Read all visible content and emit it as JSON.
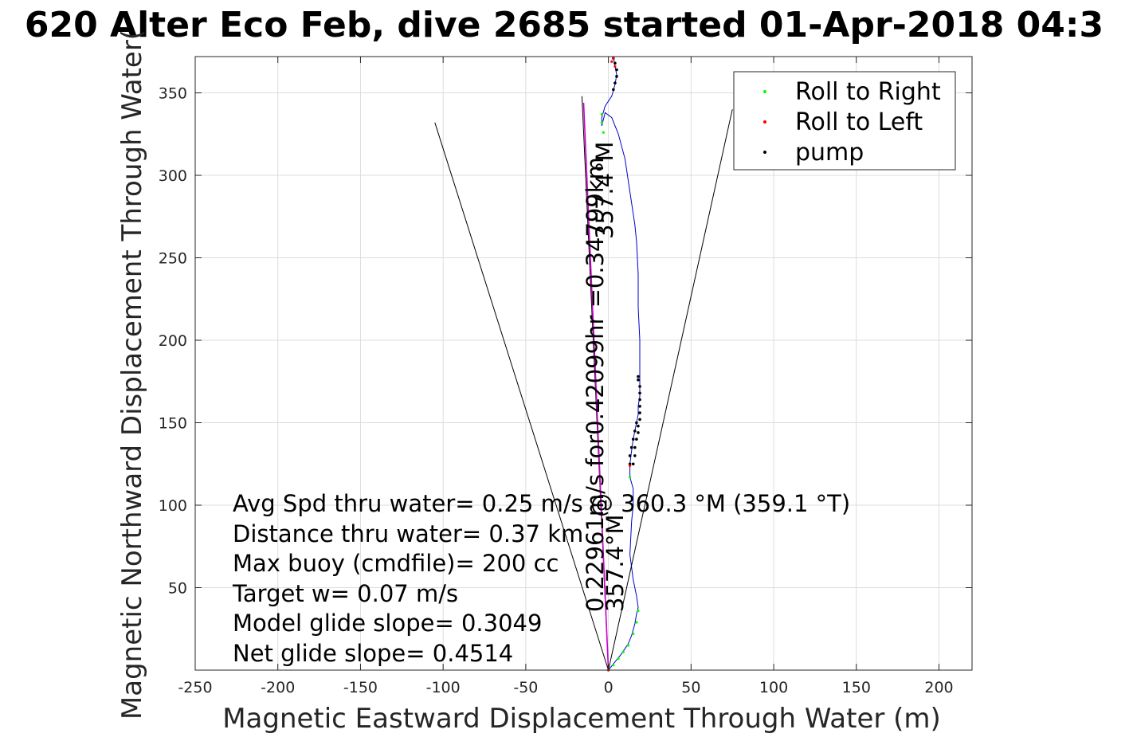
{
  "chart_data": {
    "type": "line",
    "title": "620 Alter Eco Feb, dive 2685 started 01-Apr-2018 04:3",
    "xlabel": "Magnetic Eastward Displacement Through Water (m)",
    "ylabel": "Magnetic Northward Displacement Through Water(",
    "xlim": [
      -250,
      220
    ],
    "ylim": [
      0,
      372
    ],
    "grid": true,
    "xticks": [
      -250,
      -200,
      -150,
      -100,
      -50,
      0,
      50,
      100,
      150,
      200
    ],
    "yticks": [
      50,
      100,
      150,
      200,
      250,
      300,
      350
    ],
    "legend": {
      "placement": "top-right",
      "entries": [
        {
          "label": "Roll to Right",
          "color": "#00ff00"
        },
        {
          "label": "Roll to Left",
          "color": "#ff0000"
        },
        {
          "label": "pump",
          "color": "#000000"
        }
      ]
    },
    "series": [
      {
        "style": "track",
        "color": "#0000cc",
        "x": [
          0,
          4,
          8,
          12,
          14,
          16,
          17,
          18,
          17,
          15,
          13,
          14,
          15,
          15,
          13,
          13,
          14,
          15,
          16,
          17,
          18,
          18,
          19,
          19,
          19,
          19,
          18,
          18,
          17,
          16,
          13,
          10,
          6,
          2,
          -2,
          -4,
          -4,
          -2,
          2,
          4,
          5,
          4,
          3
        ],
        "y": [
          0,
          5,
          10,
          16,
          21,
          28,
          34,
          38,
          45,
          55,
          70,
          90,
          100,
          110,
          117,
          125,
          133,
          140,
          145,
          150,
          155,
          160,
          166,
          172,
          178,
          200,
          220,
          240,
          260,
          270,
          290,
          310,
          325,
          335,
          338,
          330,
          335,
          342,
          348,
          355,
          361,
          366,
          372
        ]
      },
      {
        "style": "heading-line",
        "color": "#000000",
        "x": [
          0,
          -16
        ],
        "y": [
          0,
          348
        ]
      },
      {
        "style": "heading-line",
        "color": "#cc00cc",
        "x": [
          0,
          -15
        ],
        "y": [
          0,
          344
        ]
      },
      {
        "style": "cone",
        "color": "#000000",
        "x": [
          -105,
          0,
          75
        ],
        "y": [
          332,
          0,
          340
        ]
      }
    ],
    "markers": {
      "roll_right": {
        "color": "#00ff00",
        "x": [
          0,
          3,
          6,
          9,
          12,
          15,
          17,
          18,
          13,
          -3,
          -4,
          -4
        ],
        "y": [
          0,
          3,
          7,
          11,
          15,
          22,
          29,
          36,
          117,
          326,
          332,
          337
        ]
      },
      "roll_left": {
        "color": "#ff0000",
        "x": [
          0,
          13,
          2,
          3,
          4
        ],
        "y": [
          0,
          124,
          369,
          371,
          366
        ]
      },
      "pump": {
        "color": "#000000",
        "x": [
          15,
          16,
          16,
          17,
          18,
          18,
          19,
          19,
          19,
          19,
          19,
          19,
          18,
          18,
          17,
          16,
          15,
          14,
          13,
          13,
          3,
          4,
          5,
          5,
          4,
          3
        ],
        "y": [
          125,
          130,
          135,
          140,
          144,
          148,
          152,
          156,
          160,
          164,
          168,
          172,
          176,
          178,
          150,
          145,
          140,
          135,
          130,
          125,
          371,
          368,
          364,
          360,
          356,
          352
        ]
      }
    },
    "annotations": [
      "Avg Spd thru water=  0.25 m/s @ 360.3 °M (359.1 °T)",
      "Distance thru water=  0.37 km",
      "Max buoy (cmdfile)= 200 cc",
      "Target w= 0.07 m/s",
      "Model glide slope= 0.3049",
      "Net glide slope= 0.4514"
    ],
    "line_labels": [
      {
        "text": "0.22961m/s for0.42099hr =0.34799km",
        "angle": -90
      },
      {
        "text": "357.4°M",
        "angle": -90
      },
      {
        "text": "357.4°M",
        "angle": -90
      }
    ]
  }
}
